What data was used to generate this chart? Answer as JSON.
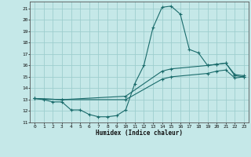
{
  "xlabel": "Humidex (Indice chaleur)",
  "bg_color": "#c5e8e8",
  "grid_color": "#9ecece",
  "line_color": "#1a6b6b",
  "xlim": [
    -0.5,
    23.5
  ],
  "ylim": [
    11,
    21.6
  ],
  "xticks": [
    0,
    1,
    2,
    3,
    4,
    5,
    6,
    7,
    8,
    9,
    10,
    11,
    12,
    13,
    14,
    15,
    16,
    17,
    18,
    19,
    20,
    21,
    22,
    23
  ],
  "yticks": [
    11,
    12,
    13,
    14,
    15,
    16,
    17,
    18,
    19,
    20,
    21
  ],
  "line1_x": [
    0,
    1,
    2,
    3,
    4,
    5,
    6,
    7,
    8,
    9,
    10,
    11,
    12,
    13,
    14,
    15,
    16,
    17,
    18,
    19,
    20,
    21,
    22,
    23
  ],
  "line1_y": [
    13.1,
    13.0,
    12.8,
    12.8,
    12.1,
    12.1,
    11.7,
    11.5,
    11.5,
    11.6,
    12.1,
    14.4,
    16.0,
    19.3,
    21.1,
    21.2,
    20.5,
    17.4,
    17.1,
    16.0,
    16.1,
    16.2,
    15.1,
    15.0
  ],
  "line2_x": [
    0,
    3,
    10,
    14,
    15,
    19,
    20,
    21,
    22,
    23
  ],
  "line2_y": [
    13.1,
    13.0,
    13.3,
    15.5,
    15.7,
    16.0,
    16.1,
    16.2,
    15.2,
    15.1
  ],
  "line3_x": [
    0,
    3,
    10,
    14,
    15,
    19,
    20,
    21,
    22,
    23
  ],
  "line3_y": [
    13.1,
    13.0,
    13.0,
    14.8,
    15.0,
    15.3,
    15.5,
    15.6,
    14.9,
    15.0
  ]
}
